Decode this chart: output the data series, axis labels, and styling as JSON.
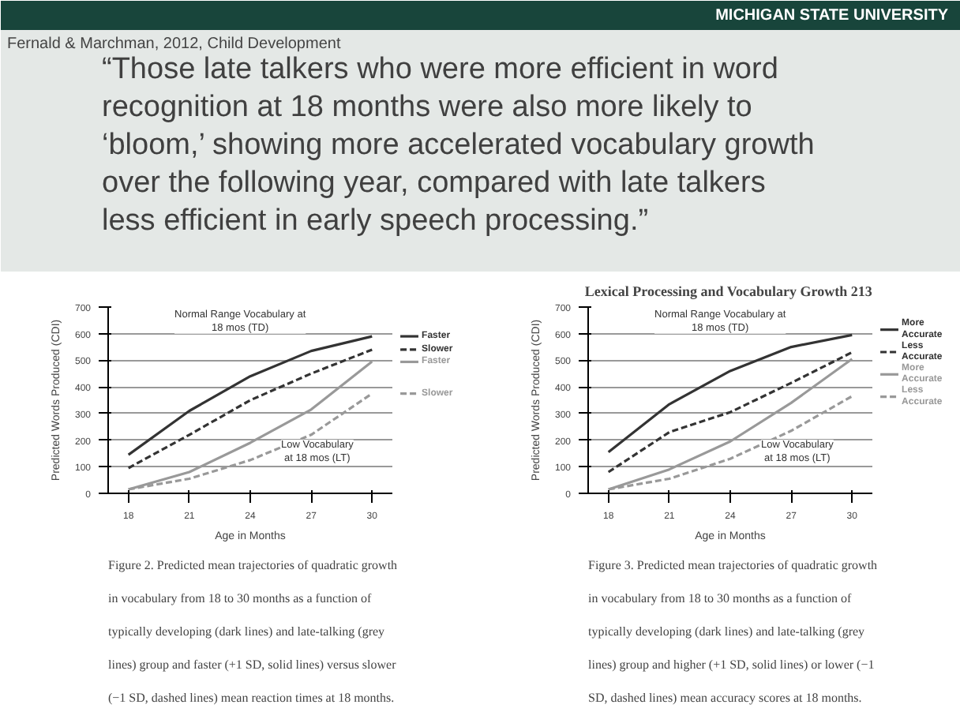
{
  "chart_data": [
    {
      "type": "other",
      "title": "MICHIGAN STATE UNIVERSITY",
      "subtitle": "Fernald & Marchman, 2012, Child Development",
      "annotations": [
        "“Those late talkers who were more efficient in word recognition at 18 months were also more likely to ‘bloom,’ showing more accelerated vocabulary growth over the following year, compared with late talkers less efficient in early speech processing.”"
      ]
    },
    {
      "type": "line",
      "xlabel": "Age in Months",
      "ylabel": "Predicted Words Produced (CDI)",
      "x": [
        18,
        21,
        24,
        27,
        30
      ],
      "xlim": [
        17,
        31
      ],
      "xticks": [
        18,
        21,
        24,
        27,
        30
      ],
      "ylim": [
        0,
        700
      ],
      "yticks": [
        0,
        100,
        200,
        300,
        400,
        500,
        600,
        700
      ],
      "grid": "y",
      "legend": "right",
      "series": [
        {
          "name": "Faster",
          "color": "#333333",
          "line_style": "solid",
          "values": [
            145,
            310,
            440,
            535,
            590
          ]
        },
        {
          "name": "Slower",
          "color": "#333333",
          "line_style": "dashed",
          "values": [
            95,
            220,
            350,
            450,
            540
          ]
        },
        {
          "name": "Faster",
          "color": "#999999",
          "line_style": "solid",
          "values": [
            15,
            80,
            190,
            315,
            495
          ]
        },
        {
          "name": "Slower",
          "color": "#999999",
          "line_style": "dashed",
          "values": [
            15,
            55,
            125,
            220,
            375
          ]
        }
      ],
      "annotations": [
        "Normal Range Vocabulary at 18 mos (TD)",
        "Low Vocabulary at 18 mos (LT)",
        "Figure 2. Predicted mean trajectories of quadratic growth in vocabulary from 18 to 30 months as a function of typically developing (dark lines) and late-talking (grey lines) group and faster (+1 SD, solid lines) versus slower (−1 SD, dashed lines) mean reaction times at 18 months."
      ]
    },
    {
      "type": "line",
      "title": "Lexical Processing and Vocabulary Growth 213",
      "xlabel": "Age in Months",
      "ylabel": "Predicted Words Produced (CDI)",
      "x": [
        18,
        21,
        24,
        27,
        30
      ],
      "xlim": [
        17,
        31
      ],
      "xticks": [
        18,
        21,
        24,
        27,
        30
      ],
      "ylim": [
        0,
        700
      ],
      "yticks": [
        0,
        100,
        200,
        300,
        400,
        500,
        600,
        700
      ],
      "grid": "y",
      "legend": "right",
      "series": [
        {
          "name": "More Accurate",
          "color": "#333333",
          "line_style": "solid",
          "values": [
            155,
            335,
            460,
            550,
            595
          ]
        },
        {
          "name": "Less Accurate",
          "color": "#333333",
          "line_style": "dashed",
          "values": [
            80,
            230,
            305,
            415,
            530
          ]
        },
        {
          "name": "More Accurate",
          "color": "#999999",
          "line_style": "solid",
          "values": [
            15,
            90,
            195,
            340,
            505
          ]
        },
        {
          "name": "Less Accurate",
          "color": "#999999",
          "line_style": "dashed",
          "values": [
            15,
            55,
            130,
            235,
            365
          ]
        }
      ],
      "annotations": [
        "Normal Range Vocabulary at 18 mos (TD)",
        "Low Vocabulary at 18 mos (LT)",
        "Figure 3. Predicted mean trajectories of quadratic growth in vocabulary from 18 to 30 months as a function of typically developing (dark lines) and late-talking (grey lines) group and higher (+1 SD, solid lines) or lower (−1 SD, dashed lines) mean accuracy scores at 18 months."
      ]
    }
  ]
}
